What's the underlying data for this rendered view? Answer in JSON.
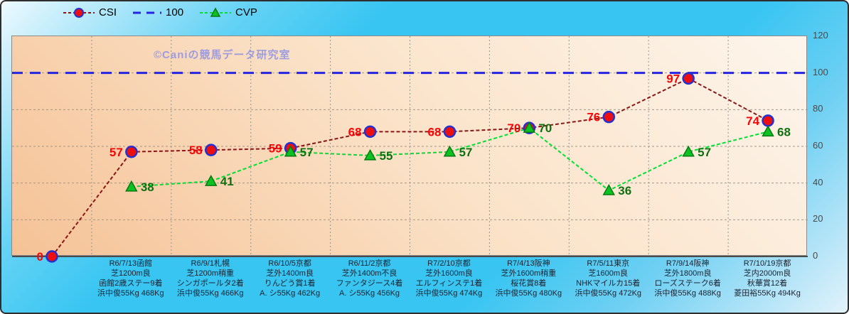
{
  "watermark": "©Caniの競馬データ研究室",
  "legend": {
    "items": [
      {
        "label": "CSI",
        "marker": "circle-icon",
        "line_color": "#8c1616",
        "marker_fill": "#ed0f0f",
        "marker_edge": "#2430cf"
      },
      {
        "label": "100",
        "marker": "dash-icon",
        "line_color": "#2424e2"
      },
      {
        "label": "CVP",
        "marker": "triangle-icon",
        "line_color": "#00e033",
        "marker_fill": "#0cc222",
        "marker_edge": "#067a10"
      }
    ]
  },
  "chart_data": {
    "type": "line",
    "title": "",
    "xlabel": "",
    "ylabel": "",
    "ylim": [
      0,
      120
    ],
    "y_axis_side": "right",
    "y_ticks": [
      0,
      20,
      40,
      60,
      80,
      100,
      120
    ],
    "grid": true,
    "legend_position": "top",
    "categories": [
      [
        "",
        "",
        "",
        ""
      ],
      [
        "R6/7/13函館",
        "芝1200m良",
        "函館2歳ステー9着",
        "浜中俊55Kg 468Kg"
      ],
      [
        "R6/9/1札幌",
        "芝1200m稍重",
        "シンガポールタ2着",
        "浜中俊55Kg 466Kg"
      ],
      [
        "R6/10/5京都",
        "芝外1400m良",
        "りんどう賞1着",
        "A. シ55Kg 462Kg"
      ],
      [
        "R6/11/2京都",
        "芝外1400m不良",
        "ファンタジース4着",
        "A. シ55Kg 456Kg"
      ],
      [
        "R7/2/10京都",
        "芝外1600m良",
        "エルフィンステ1着",
        "浜中俊55Kg 474Kg"
      ],
      [
        "R7/4/13阪神",
        "芝外1600m稍重",
        "桜花賞8着",
        "浜中俊55Kg 480Kg"
      ],
      [
        "R7/5/11東京",
        "芝1600m良",
        "NHKマイルカ15着",
        "浜中俊55Kg 472Kg"
      ],
      [
        "R7/9/14阪神",
        "芝外1800m良",
        "ローズステーク6着",
        "浜中俊55Kg 488Kg"
      ],
      [
        "R7/10/19京都",
        "芝内2000m良",
        "秋華賞12着",
        "菱田裕55Kg 494Kg"
      ]
    ],
    "series": [
      {
        "name": "CSI",
        "type": "line-dashed",
        "marker": "circle",
        "line_color": "#8c1616",
        "marker_fill": "#ed0f0f",
        "marker_edge": "#2430cf",
        "label_color": "#f80606",
        "values": [
          0,
          57,
          58,
          59,
          68,
          68,
          70,
          76,
          97,
          74
        ]
      },
      {
        "name": "100",
        "type": "reference-line",
        "line_color": "#2424e2",
        "value": 100
      },
      {
        "name": "CVP",
        "type": "line-dashed",
        "marker": "triangle",
        "line_color": "#00e033",
        "marker_fill": "#0cc222",
        "marker_edge": "#067a10",
        "label_color": "#0f7011",
        "values": [
          null,
          38,
          41,
          57,
          55,
          57,
          70,
          36,
          57,
          68
        ]
      }
    ]
  }
}
